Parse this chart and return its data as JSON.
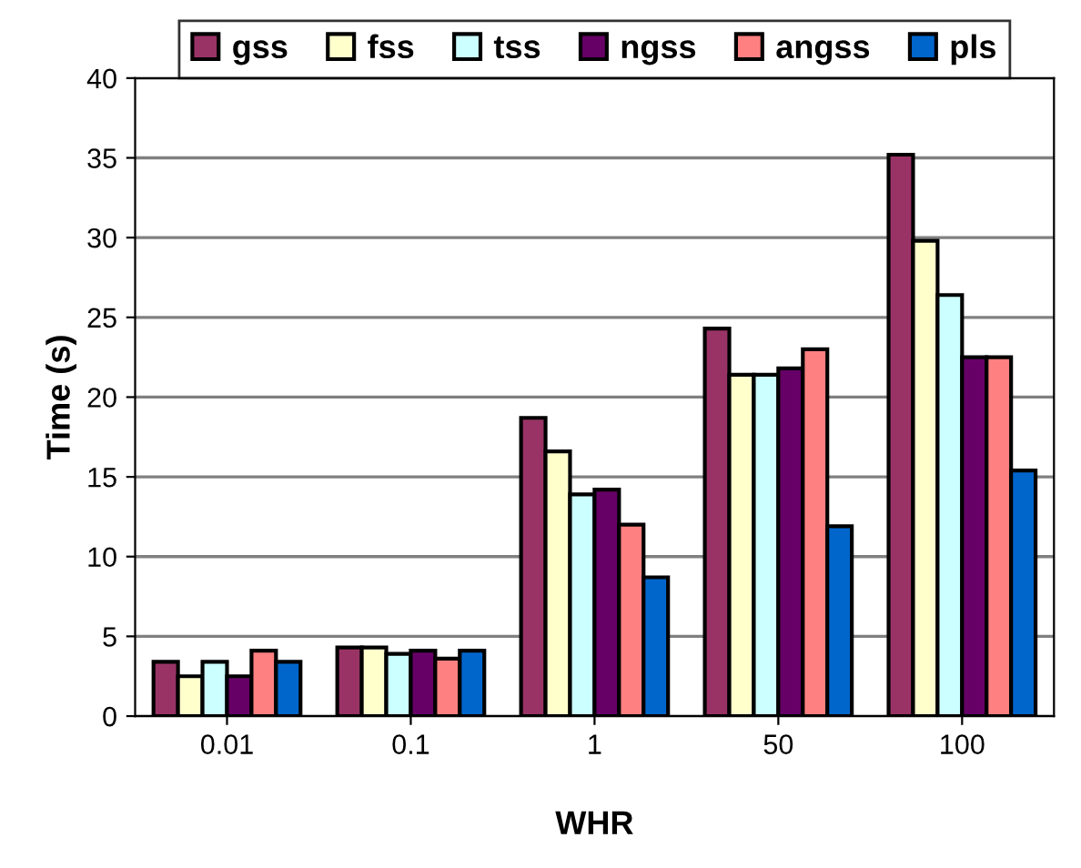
{
  "chart_data": {
    "type": "bar",
    "xlabel": "WHR",
    "ylabel": "Time (s)",
    "categories": [
      "0.01",
      "0.1",
      "1",
      "50",
      "100"
    ],
    "series": [
      {
        "name": "gss",
        "color": "#993366",
        "values": [
          3.4,
          4.3,
          18.7,
          24.3,
          35.2
        ]
      },
      {
        "name": "fss",
        "color": "#ffffcc",
        "values": [
          2.5,
          4.3,
          16.6,
          21.4,
          29.8
        ]
      },
      {
        "name": "tss",
        "color": "#ccffff",
        "values": [
          3.4,
          3.9,
          13.9,
          21.4,
          26.4
        ]
      },
      {
        "name": "ngss",
        "color": "#660066",
        "values": [
          2.5,
          4.1,
          14.2,
          21.8,
          22.5
        ]
      },
      {
        "name": "angss",
        "color": "#ff8080",
        "values": [
          4.1,
          3.6,
          12.0,
          23.0,
          22.5
        ]
      },
      {
        "name": "pls",
        "color": "#0066cc",
        "values": [
          3.4,
          4.1,
          8.7,
          11.9,
          15.4
        ]
      }
    ],
    "ylim": [
      0,
      40
    ],
    "yticks": [
      0,
      5,
      10,
      15,
      20,
      25,
      30,
      35,
      40
    ],
    "grid": "y",
    "legend": "top"
  }
}
